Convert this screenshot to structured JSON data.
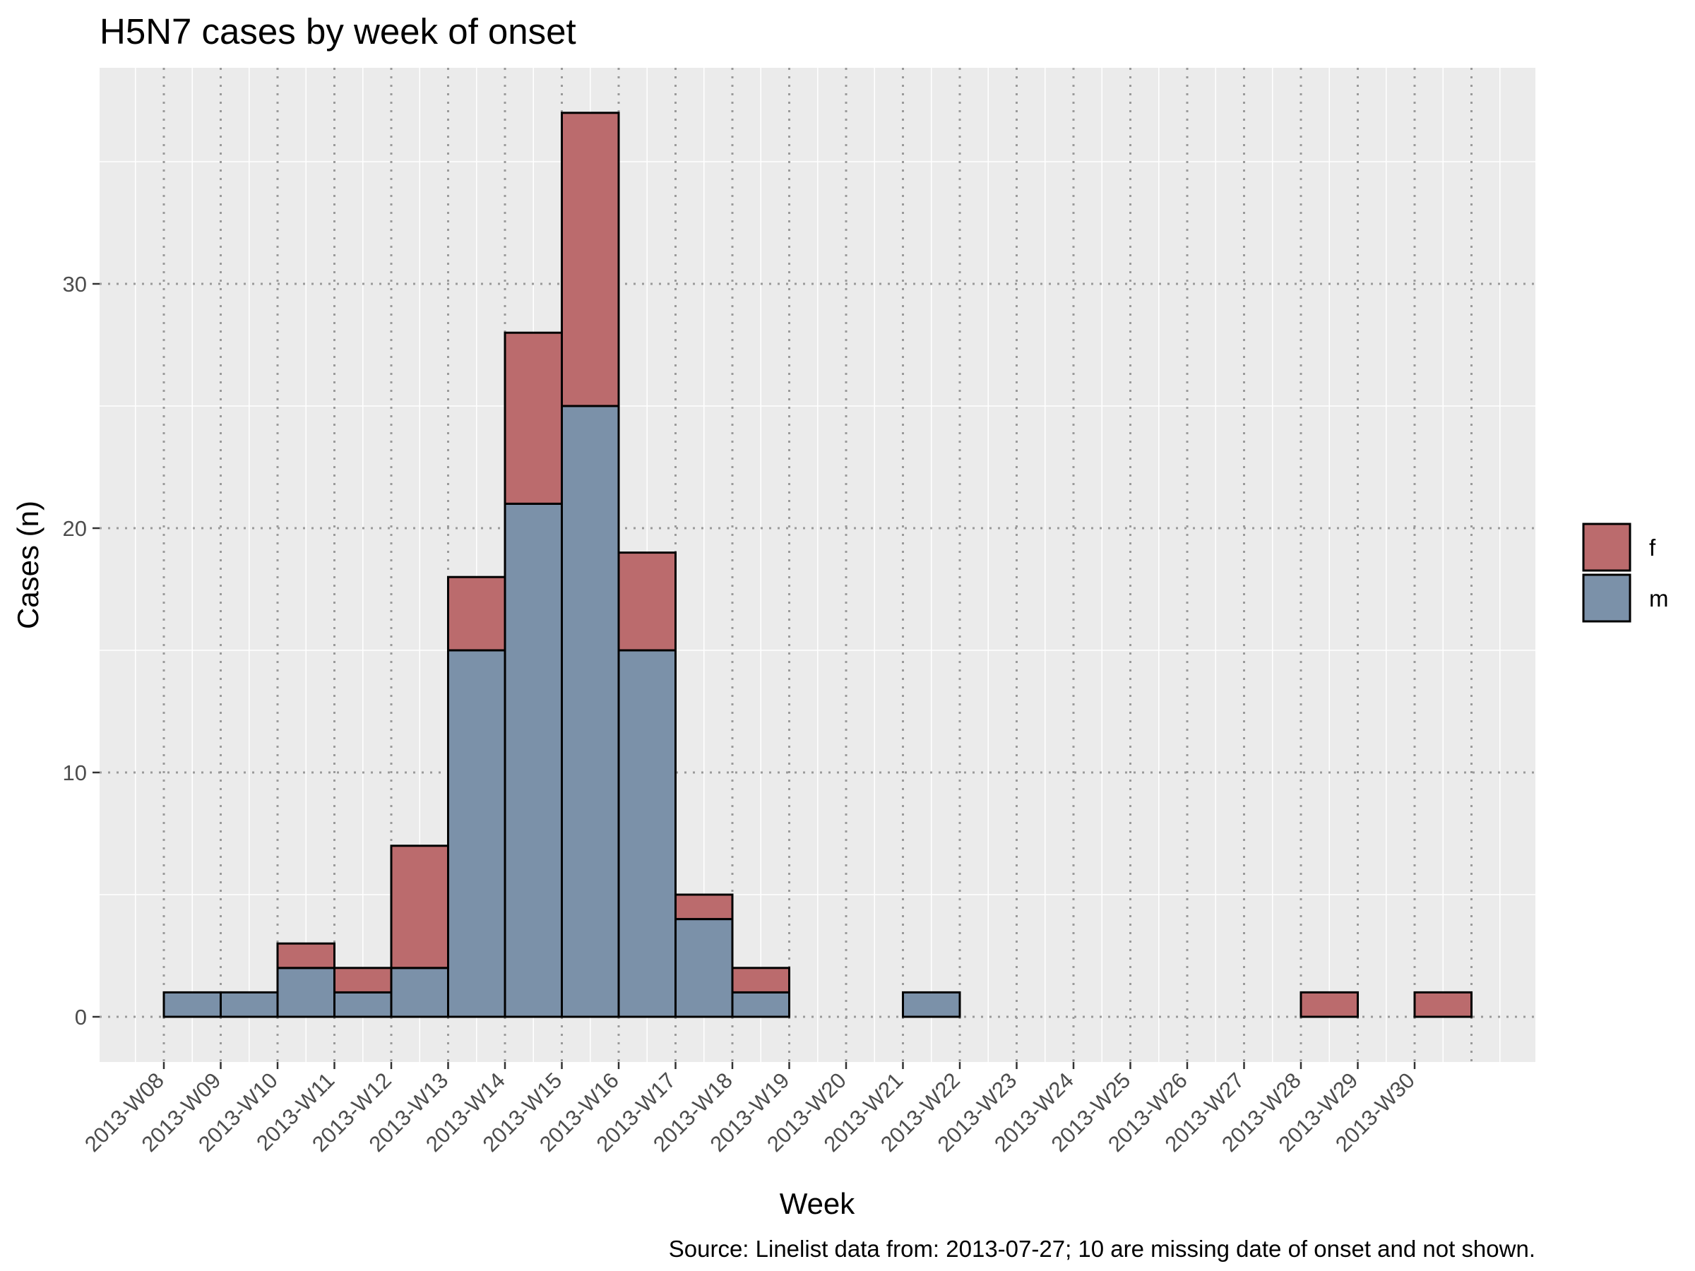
{
  "chart_data": {
    "type": "bar",
    "stacked": true,
    "title": "H5N7 cases by week of onset",
    "xlabel": "Week",
    "ylabel": "Cases (n)",
    "caption": "Source: Linelist data from: 2013-07-27; 10 are missing date of onset and not shown.",
    "categories": [
      "2013-W08",
      "2013-W09",
      "2013-W10",
      "2013-W11",
      "2013-W12",
      "2013-W13",
      "2013-W14",
      "2013-W15",
      "2013-W16",
      "2013-W17",
      "2013-W18",
      "2013-W19",
      "2013-W20",
      "2013-W21",
      "2013-W22",
      "2013-W23",
      "2013-W24",
      "2013-W25",
      "2013-W26",
      "2013-W27",
      "2013-W28",
      "2013-W29",
      "2013-W30"
    ],
    "series": [
      {
        "name": "m",
        "color": "#7b91a9",
        "values": [
          1,
          1,
          2,
          1,
          2,
          15,
          21,
          25,
          15,
          4,
          1,
          0,
          0,
          1,
          0,
          0,
          0,
          0,
          0,
          0,
          0,
          0,
          0
        ]
      },
      {
        "name": "f",
        "color": "#bb6b6d",
        "values": [
          0,
          0,
          1,
          1,
          5,
          3,
          7,
          12,
          4,
          1,
          1,
          0,
          0,
          0,
          0,
          0,
          0,
          0,
          0,
          0,
          1,
          0,
          1
        ]
      }
    ],
    "yticks": [
      0,
      10,
      20,
      30
    ],
    "ylim": [
      -1.85,
      38.9
    ],
    "legend": {
      "position": "right",
      "entries": [
        "f",
        "m"
      ]
    },
    "grid": true
  }
}
